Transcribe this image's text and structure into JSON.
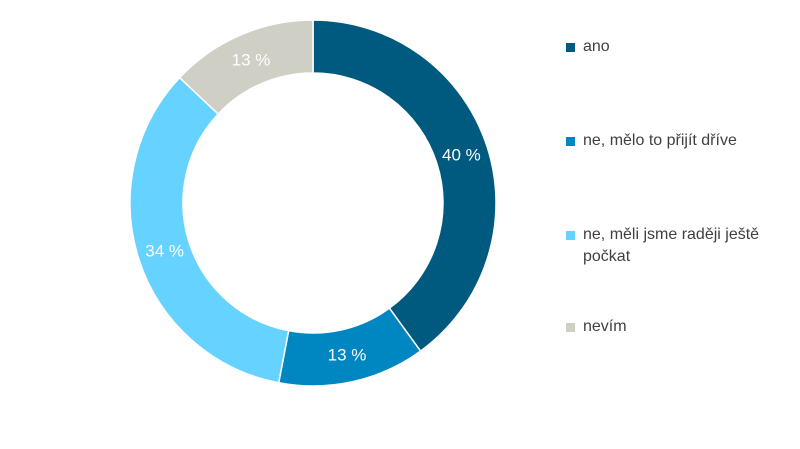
{
  "chart_data": {
    "type": "pie",
    "donut": true,
    "categories": [
      "ano",
      "ne, mělo to přijít dříve",
      "ne, měli jsme raději ještě počkat",
      "nevím"
    ],
    "values": [
      40,
      13,
      34,
      13
    ],
    "value_labels": [
      "40 %",
      "13 %",
      "34 %",
      "13 %"
    ],
    "colors": [
      "#005a80",
      "#0087c1",
      "#66d2ff",
      "#cfcfc6"
    ],
    "legend_position": "right",
    "title": ""
  }
}
